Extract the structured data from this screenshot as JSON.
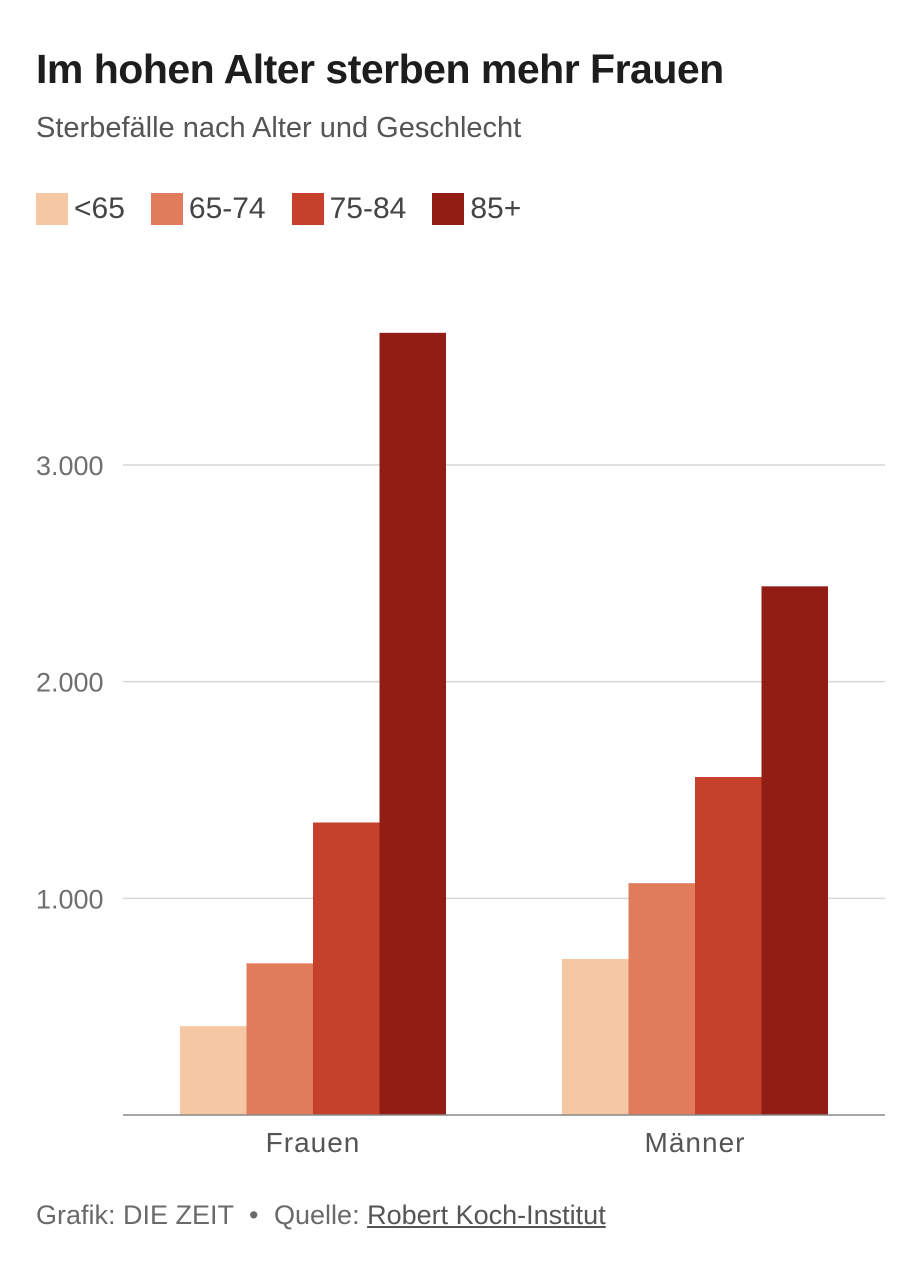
{
  "header": {
    "title": "Im hohen Alter sterben mehr Frauen",
    "subtitle": "Sterbefälle nach Alter und Geschlecht"
  },
  "chart_data": {
    "type": "bar",
    "title": "Im hohen Alter sterben mehr Frauen",
    "subtitle": "Sterbefälle nach Alter und Geschlecht",
    "categories": [
      "Frauen",
      "Männer"
    ],
    "series": [
      {
        "name": "<65",
        "color": "#f5c8a3",
        "values": [
          410,
          720
        ]
      },
      {
        "name": "65-74",
        "color": "#e07c5c",
        "values": [
          700,
          1070
        ]
      },
      {
        "name": "75-84",
        "color": "#c5412b",
        "values": [
          1350,
          1560
        ]
      },
      {
        "name": "85+",
        "color": "#921d14",
        "values": [
          3610,
          2440
        ]
      }
    ],
    "yticks": [
      {
        "value": 1000,
        "label": "1.000"
      },
      {
        "value": 2000,
        "label": "2.000"
      },
      {
        "value": 3000,
        "label": "3.000"
      }
    ],
    "ylim": [
      0,
      3700
    ],
    "xlabel": "",
    "ylabel": "",
    "grid": true,
    "legend_position": "top-left"
  },
  "footer": {
    "credit": "Grafik: DIE ZEIT",
    "separator": "•",
    "source_prefix": "Quelle:",
    "source": "Robert Koch-Institut"
  }
}
